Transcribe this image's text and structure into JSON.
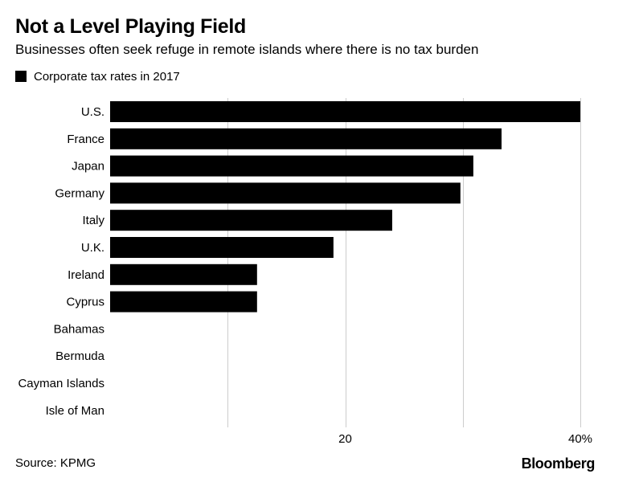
{
  "header": {
    "title": "Not a Level Playing Field",
    "subtitle": "Businesses often seek refuge in remote islands where there is no tax burden"
  },
  "legend": {
    "label": "Corporate tax rates in 2017"
  },
  "footer": {
    "source": "Source: KPMG",
    "brand": "Bloomberg"
  },
  "colors": {
    "bar": "#000000",
    "grid": "#cccccc",
    "background": "#ffffff"
  },
  "chart_data": {
    "type": "bar",
    "orientation": "horizontal",
    "title": "Not a Level Playing Field",
    "subtitle": "Businesses often seek refuge in remote islands where there is no tax burden",
    "categories": [
      "U.S.",
      "France",
      "Japan",
      "Germany",
      "Italy",
      "U.K.",
      "Ireland",
      "Cyprus",
      "Bahamas",
      "Bermuda",
      "Cayman Islands",
      "Isle of Man"
    ],
    "series": [
      {
        "name": "Corporate tax rates in 2017",
        "values": [
          40,
          33.3,
          30.9,
          29.8,
          24,
          19,
          12.5,
          12.5,
          0,
          0,
          0,
          0
        ]
      }
    ],
    "xlim": [
      0,
      40
    ],
    "gridlines": [
      10,
      20,
      30,
      40
    ],
    "ticks": [
      {
        "value": 20,
        "label": "20"
      },
      {
        "value": 40,
        "label": "40%"
      }
    ],
    "xlabel": "",
    "ylabel": "",
    "grid": true,
    "legend_position": "top-left"
  }
}
